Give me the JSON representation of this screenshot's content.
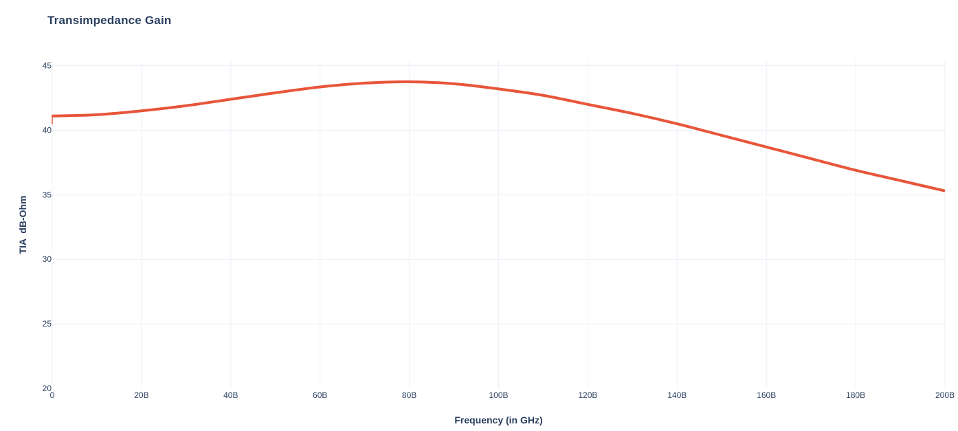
{
  "chart_data": {
    "type": "line",
    "title": "Transimpedance Gain",
    "xlabel": "Frequency (in GHz)",
    "ylabel": "TIA  dB-Ohm",
    "xlim": [
      0,
      200
    ],
    "ylim": [
      20,
      47
    ],
    "x_ticks": [
      0,
      20,
      40,
      60,
      80,
      100,
      120,
      140,
      160,
      180,
      200
    ],
    "x_tick_labels": [
      "0",
      "20B",
      "40B",
      "60B",
      "80B",
      "100B",
      "120B",
      "140B",
      "160B",
      "180B",
      "200B"
    ],
    "y_ticks": [
      20,
      25,
      30,
      35,
      40,
      45
    ],
    "y_tick_labels": [
      "20",
      "25",
      "30",
      "35",
      "40",
      "45"
    ],
    "grid": true,
    "legend": "none",
    "series": [
      {
        "color": "#e8553a",
        "x": [
          0,
          10,
          20,
          30,
          40,
          50,
          60,
          70,
          80,
          90,
          100,
          110,
          120,
          130,
          140,
          150,
          160,
          170,
          180,
          190,
          200
        ],
        "y": [
          41.1,
          41.2,
          41.5,
          41.9,
          42.4,
          42.9,
          43.35,
          43.65,
          43.75,
          43.6,
          43.2,
          42.7,
          42.0,
          41.3,
          40.5,
          39.6,
          38.7,
          37.8,
          36.9,
          36.1,
          35.3
        ]
      }
    ]
  }
}
